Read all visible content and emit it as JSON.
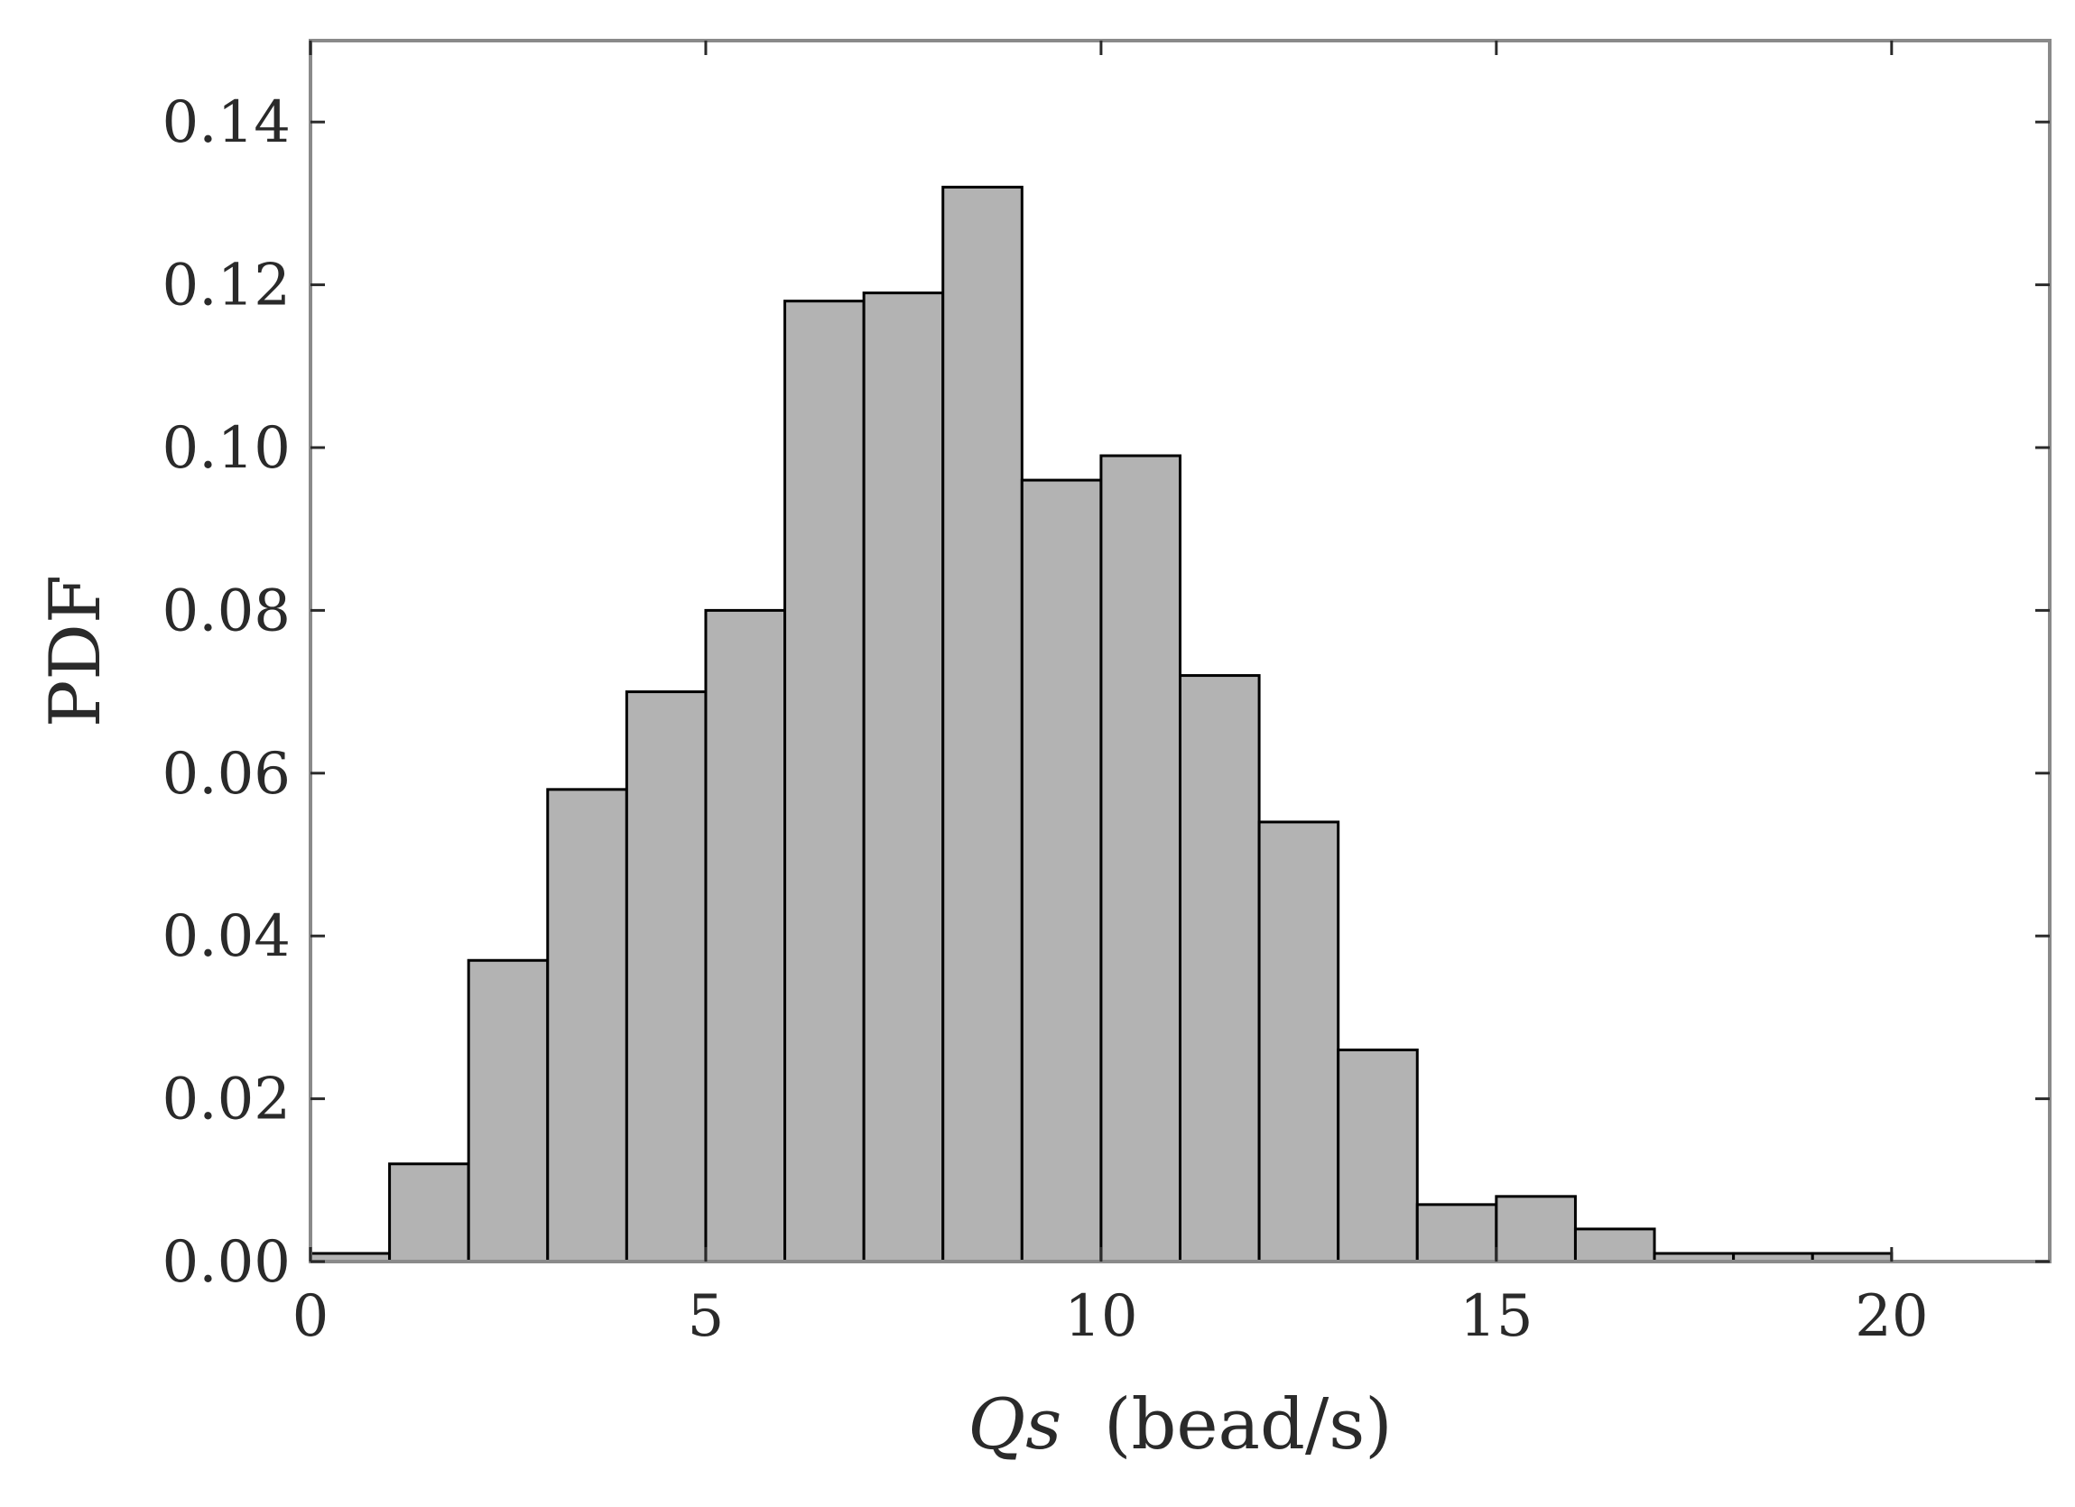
{
  "chart_data": {
    "type": "bar",
    "title": "",
    "xlabel_main": "Qs",
    "xlabel_unit": "(bead/s)",
    "ylabel": "PDF",
    "xlim": [
      0,
      22
    ],
    "ylim": [
      0,
      0.15
    ],
    "xticks": [
      0,
      5,
      10,
      15,
      20
    ],
    "xtick_labels": [
      "0",
      "5",
      "10",
      "15",
      "20"
    ],
    "yticks": [
      0,
      0.02,
      0.04,
      0.06,
      0.08,
      0.1,
      0.12,
      0.14
    ],
    "ytick_labels": [
      "0.00",
      "0.02",
      "0.04",
      "0.06",
      "0.08",
      "0.10",
      "0.12",
      "0.14"
    ],
    "grid": false,
    "legend": "none",
    "bar_color": "#b3b3b3",
    "edge_color": "#000000",
    "bins": [
      {
        "x0": 0,
        "x1": 1,
        "value": 0.001
      },
      {
        "x0": 1,
        "x1": 2,
        "value": 0.012
      },
      {
        "x0": 2,
        "x1": 3,
        "value": 0.037
      },
      {
        "x0": 3,
        "x1": 4,
        "value": 0.058
      },
      {
        "x0": 4,
        "x1": 5,
        "value": 0.07
      },
      {
        "x0": 5,
        "x1": 6,
        "value": 0.08
      },
      {
        "x0": 6,
        "x1": 7,
        "value": 0.118
      },
      {
        "x0": 7,
        "x1": 8,
        "value": 0.119
      },
      {
        "x0": 8,
        "x1": 9,
        "value": 0.132
      },
      {
        "x0": 9,
        "x1": 10,
        "value": 0.096
      },
      {
        "x0": 10,
        "x1": 11,
        "value": 0.099
      },
      {
        "x0": 11,
        "x1": 12,
        "value": 0.072
      },
      {
        "x0": 12,
        "x1": 13,
        "value": 0.054
      },
      {
        "x0": 13,
        "x1": 14,
        "value": 0.026
      },
      {
        "x0": 14,
        "x1": 15,
        "value": 0.007
      },
      {
        "x0": 15,
        "x1": 16,
        "value": 0.008
      },
      {
        "x0": 16,
        "x1": 17,
        "value": 0.004
      },
      {
        "x0": 17,
        "x1": 18,
        "value": 0.001
      },
      {
        "x0": 18,
        "x1": 19,
        "value": 0.001
      },
      {
        "x0": 19,
        "x1": 20,
        "value": 0.001
      },
      {
        "x0": 20,
        "x1": 21,
        "value": 0.0
      },
      {
        "x0": 21,
        "x1": 22,
        "value": 0.0
      }
    ]
  }
}
